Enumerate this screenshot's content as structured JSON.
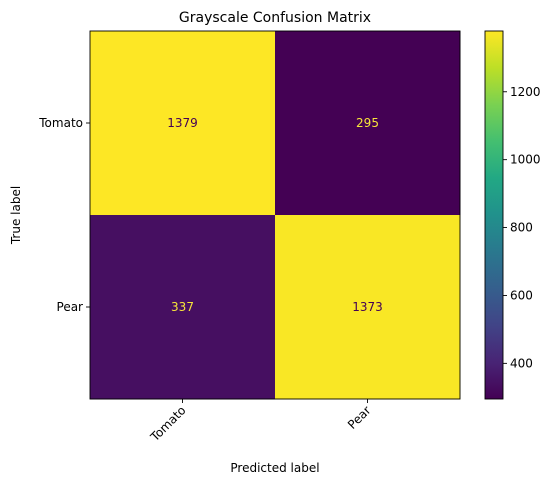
{
  "chart_data": {
    "type": "heatmap",
    "title": "Grayscale Confusion Matrix",
    "xlabel": "Predicted label",
    "ylabel": "True label",
    "x_categories": [
      "Tomato",
      "Pear"
    ],
    "y_categories": [
      "Tomato",
      "Pear"
    ],
    "matrix": [
      [
        1379,
        295
      ],
      [
        337,
        1373
      ]
    ],
    "colormap": "viridis",
    "colorbar": {
      "range": [
        295,
        1379
      ],
      "ticks": [
        400,
        600,
        800,
        1000,
        1200
      ],
      "tick_labels": [
        "400",
        "600",
        "800",
        "1000",
        "1200"
      ]
    },
    "cell_text_colors": {
      "on_dark": "#f7e53a",
      "on_light": "#440154"
    },
    "grid": false
  }
}
